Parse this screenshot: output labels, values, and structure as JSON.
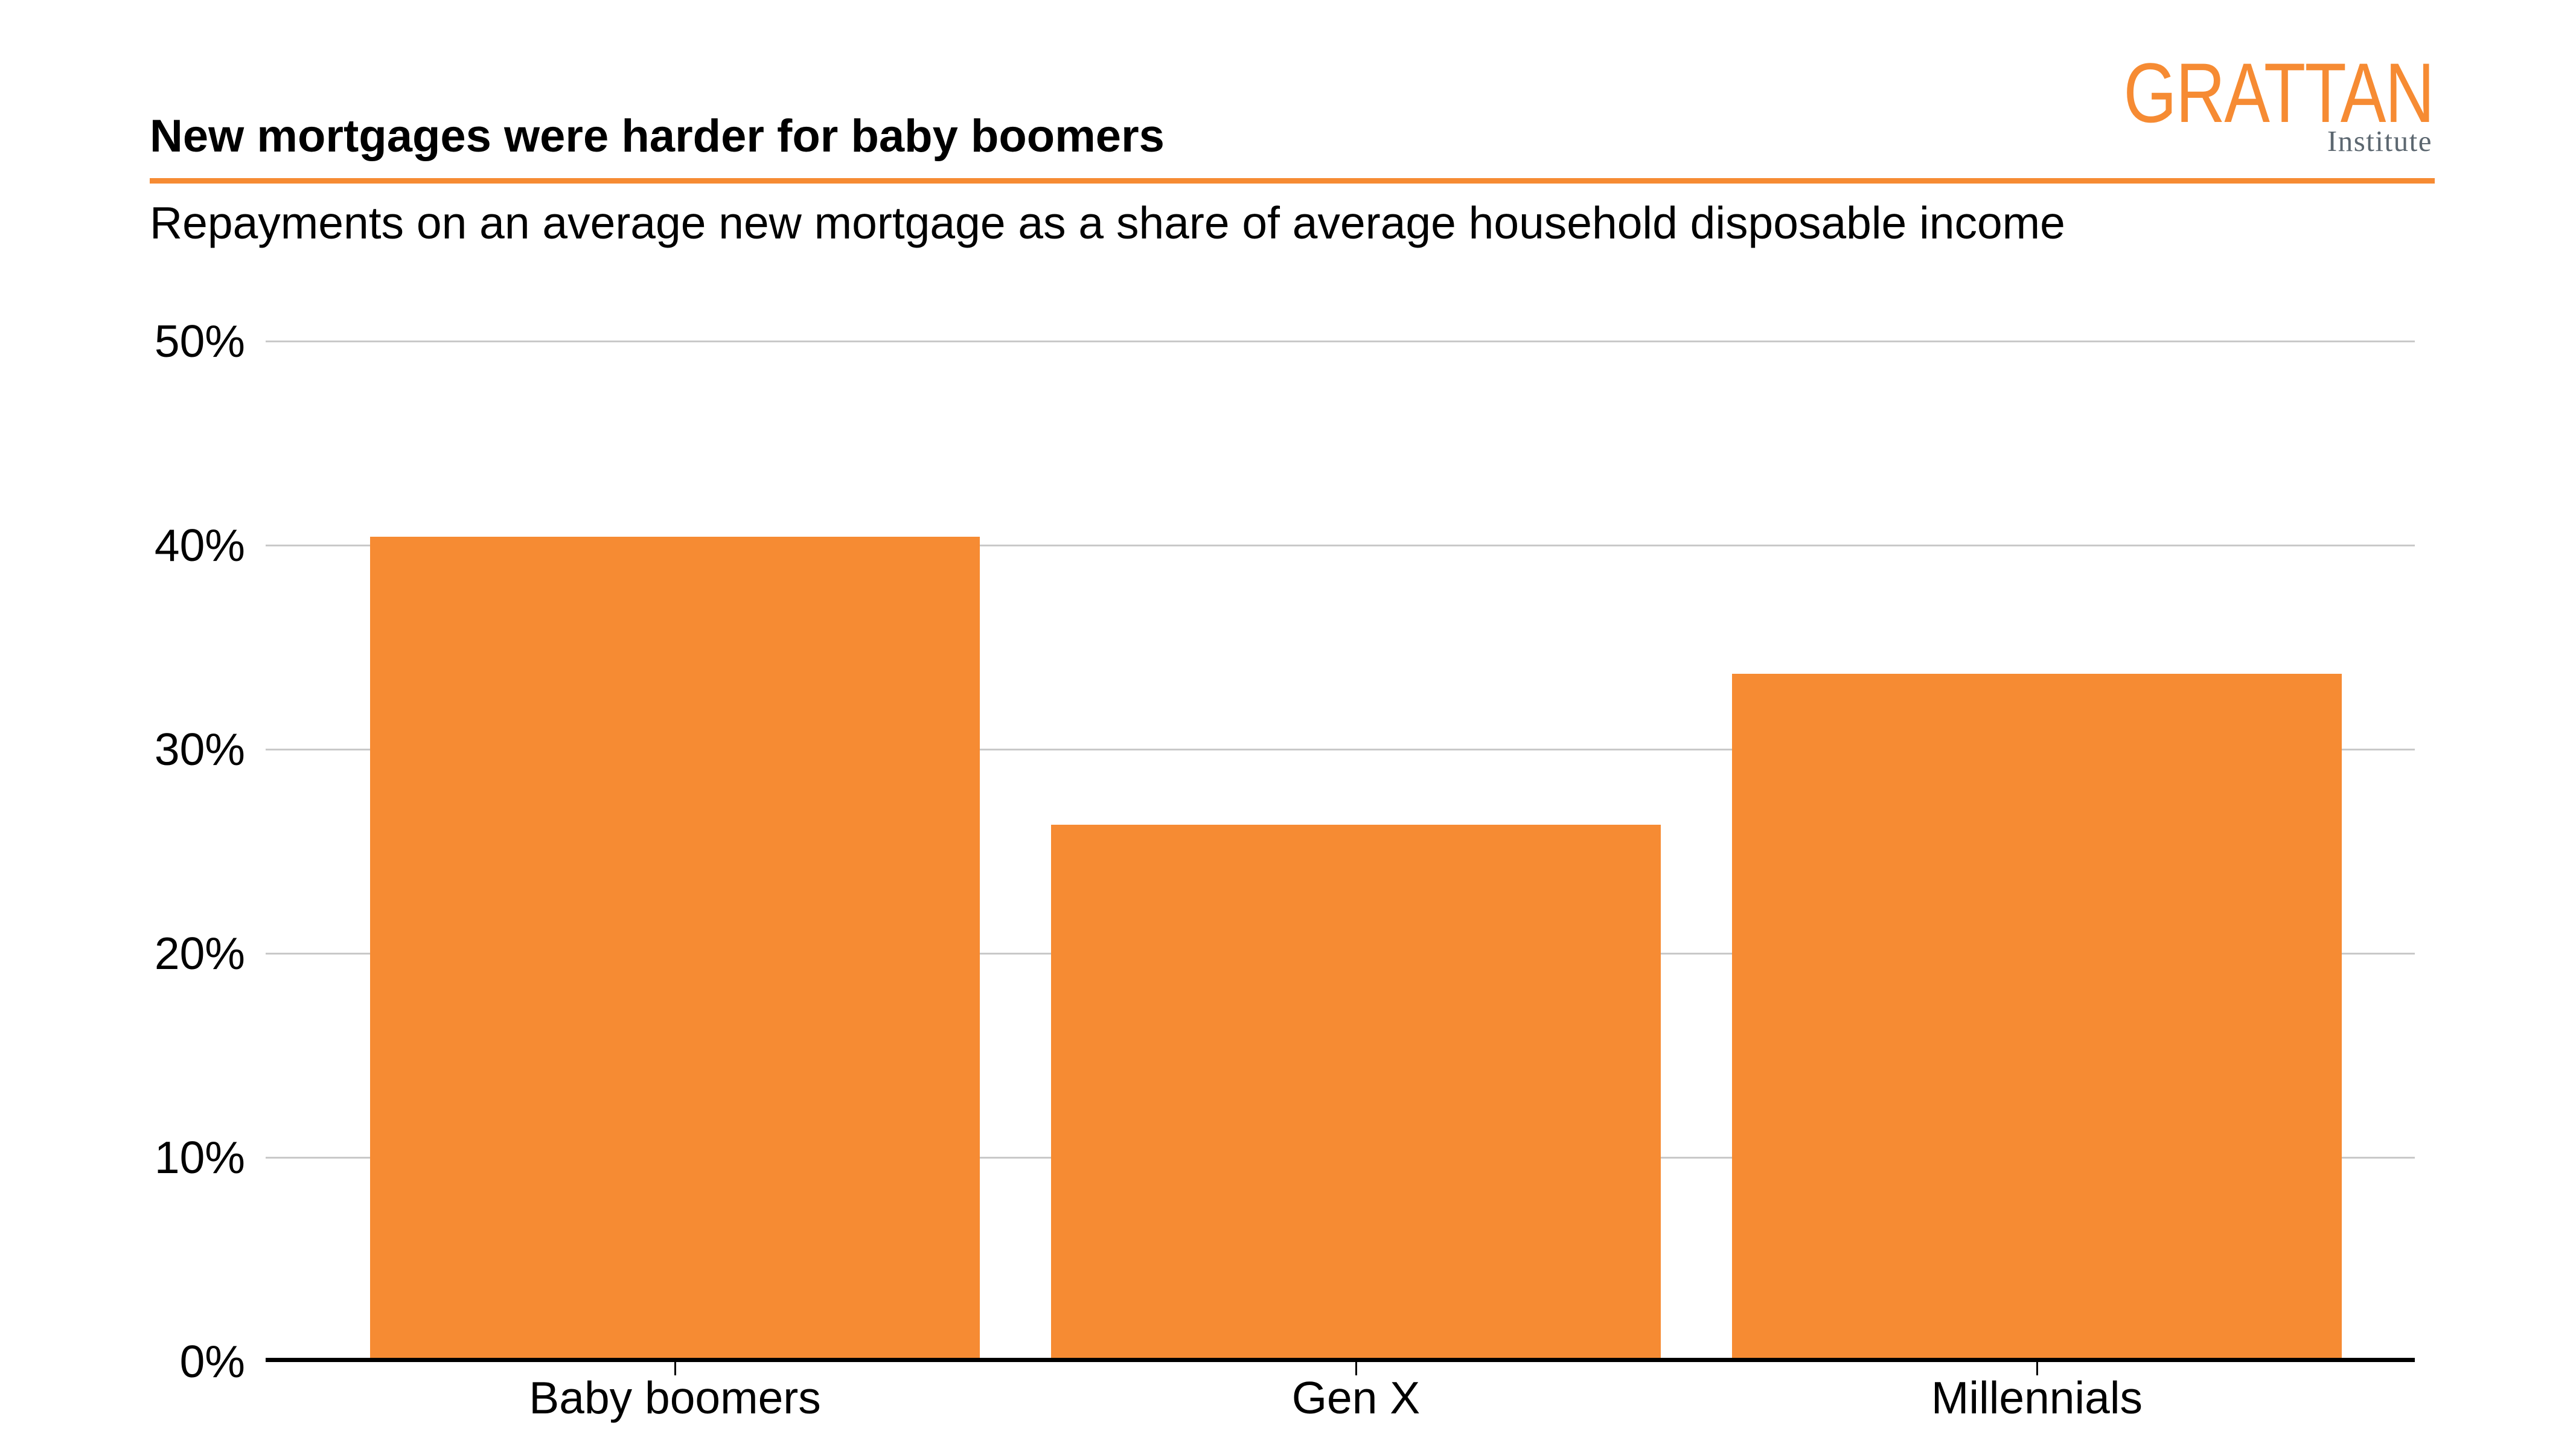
{
  "header": {
    "title": "New mortgages were harder for baby boomers",
    "subtitle": "Repayments on an average new mortgage as a share of average household disposable income",
    "logo": {
      "wordmark": "GRATTAN",
      "institute": "Institute"
    }
  },
  "colors": {
    "bar_orange": "#F68B33",
    "rule_orange": "#F68B33",
    "logo_orange": "#F68B33",
    "logo_grey": "#5C6770",
    "gridline_grey": "#C9C9C9",
    "axis_black": "#000000",
    "text_black": "#000000"
  },
  "chart_data": {
    "type": "bar",
    "title": "New mortgages were harder for baby boomers",
    "subtitle": "Repayments on an average new mortgage as a share of average household disposable income",
    "categories": [
      "Baby boomers",
      "Gen X",
      "Millennials"
    ],
    "values": [
      40.4,
      26.3,
      33.7
    ],
    "unit": "%",
    "xlabel": "",
    "ylabel": "",
    "ylim": [
      0,
      50
    ],
    "y_ticks": [
      0,
      10,
      20,
      30,
      40,
      50
    ],
    "y_tick_labels": [
      "0%",
      "10%",
      "20%",
      "30%",
      "40%",
      "50%"
    ],
    "grid": "horizontal",
    "legend": "none",
    "bar_color": "#F68B33"
  }
}
